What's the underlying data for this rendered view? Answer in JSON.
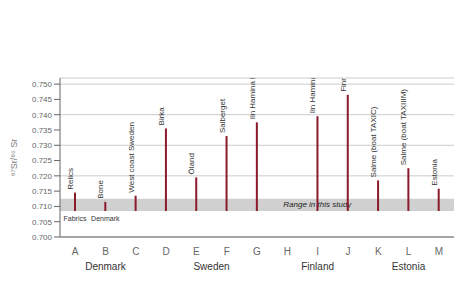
{
  "chart_data": {
    "type": "range",
    "ylabel": "⁸⁷Sr/⁸⁶ Sr",
    "categories": [
      "A",
      "B",
      "C",
      "D",
      "E",
      "F",
      "G",
      "H",
      "I",
      "J",
      "K",
      "L",
      "M"
    ],
    "values": [
      [
        0.7085,
        0.7145
      ],
      [
        0.7085,
        0.7115
      ],
      [
        0.7085,
        0.7135
      ],
      [
        0.7085,
        0.7355
      ],
      [
        0.7085,
        0.7195
      ],
      [
        0.7085,
        0.733
      ],
      [
        0.7085,
        0.7375
      ],
      null,
      [
        0.7085,
        0.7395
      ],
      [
        0.7085,
        0.7465
      ],
      [
        0.7085,
        0.7185
      ],
      [
        0.7085,
        0.7225
      ],
      [
        0.7085,
        0.7158
      ]
    ],
    "labels": [
      "Relics",
      "Bone",
      "West coast Sweden",
      "Birka",
      "Öland",
      "Salberget",
      "Iln Hamina humans",
      null,
      "Iln Hamina plants",
      "Finnish Rivers",
      "Salme (boat TAXIC)",
      "Salme (boat TAXIIIM)",
      "Estonia"
    ],
    "color": "#8B1A2D",
    "ylim": [
      0.7,
      0.752
    ],
    "yticks": [
      {
        "value": 0.7,
        "label": "0.700"
      },
      {
        "value": 0.705,
        "label": "0.705"
      },
      {
        "value": 0.71,
        "label": "0.710"
      },
      {
        "value": 0.715,
        "label": "0.715"
      },
      {
        "value": 0.72,
        "label": "0.720"
      },
      {
        "value": 0.725,
        "label": "0.725"
      },
      {
        "value": 0.73,
        "label": "0.730"
      },
      {
        "value": 0.735,
        "label": "0.735"
      },
      {
        "value": 0.74,
        "label": "0.740"
      },
      {
        "value": 0.745,
        "label": "0.745"
      },
      {
        "value": 0.75,
        "label": "0.750"
      }
    ],
    "grid": true,
    "band": {
      "range": [
        0.7085,
        0.7125
      ],
      "label": "Range in this study",
      "color": "#d0d0d0"
    },
    "annotations": [
      {
        "category": "A",
        "text": "Fabrics"
      },
      {
        "category": "B",
        "text": "Denmark"
      }
    ],
    "category_groups": [
      {
        "label": "Denmark",
        "from": "A",
        "to": "C"
      },
      {
        "label": "Sweden",
        "from": "D",
        "to": "G"
      },
      {
        "label": "Finland",
        "from": "H",
        "to": "J"
      },
      {
        "label": "Estonia",
        "from": "K",
        "to": "M"
      }
    ]
  }
}
